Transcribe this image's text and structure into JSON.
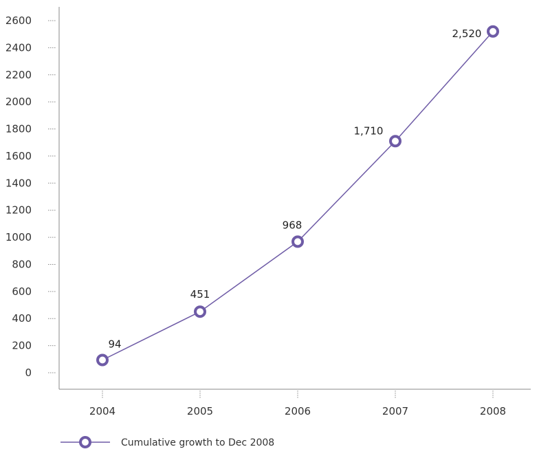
{
  "chart_data": {
    "type": "line",
    "title": "",
    "xlabel": "",
    "ylabel": "",
    "categories": [
      "2004",
      "2005",
      "2006",
      "2007",
      "2008"
    ],
    "series": [
      {
        "name": "Cumulative growth to Dec 2008",
        "values": [
          94,
          451,
          968,
          1710,
          2520
        ],
        "labels": [
          "94",
          "451",
          "968",
          "1,710",
          "2,520"
        ]
      }
    ],
    "ylim": [
      0,
      2600
    ],
    "yticks": [
      "0",
      "200",
      "400",
      "600",
      "800",
      "1000",
      "1200",
      "1400",
      "1600",
      "1800",
      "2000",
      "2200",
      "2400",
      "2600"
    ],
    "grid": false,
    "legend_position": "bottom-left",
    "colors": {
      "series": "#6e5ba6",
      "axis": "#888888"
    }
  }
}
